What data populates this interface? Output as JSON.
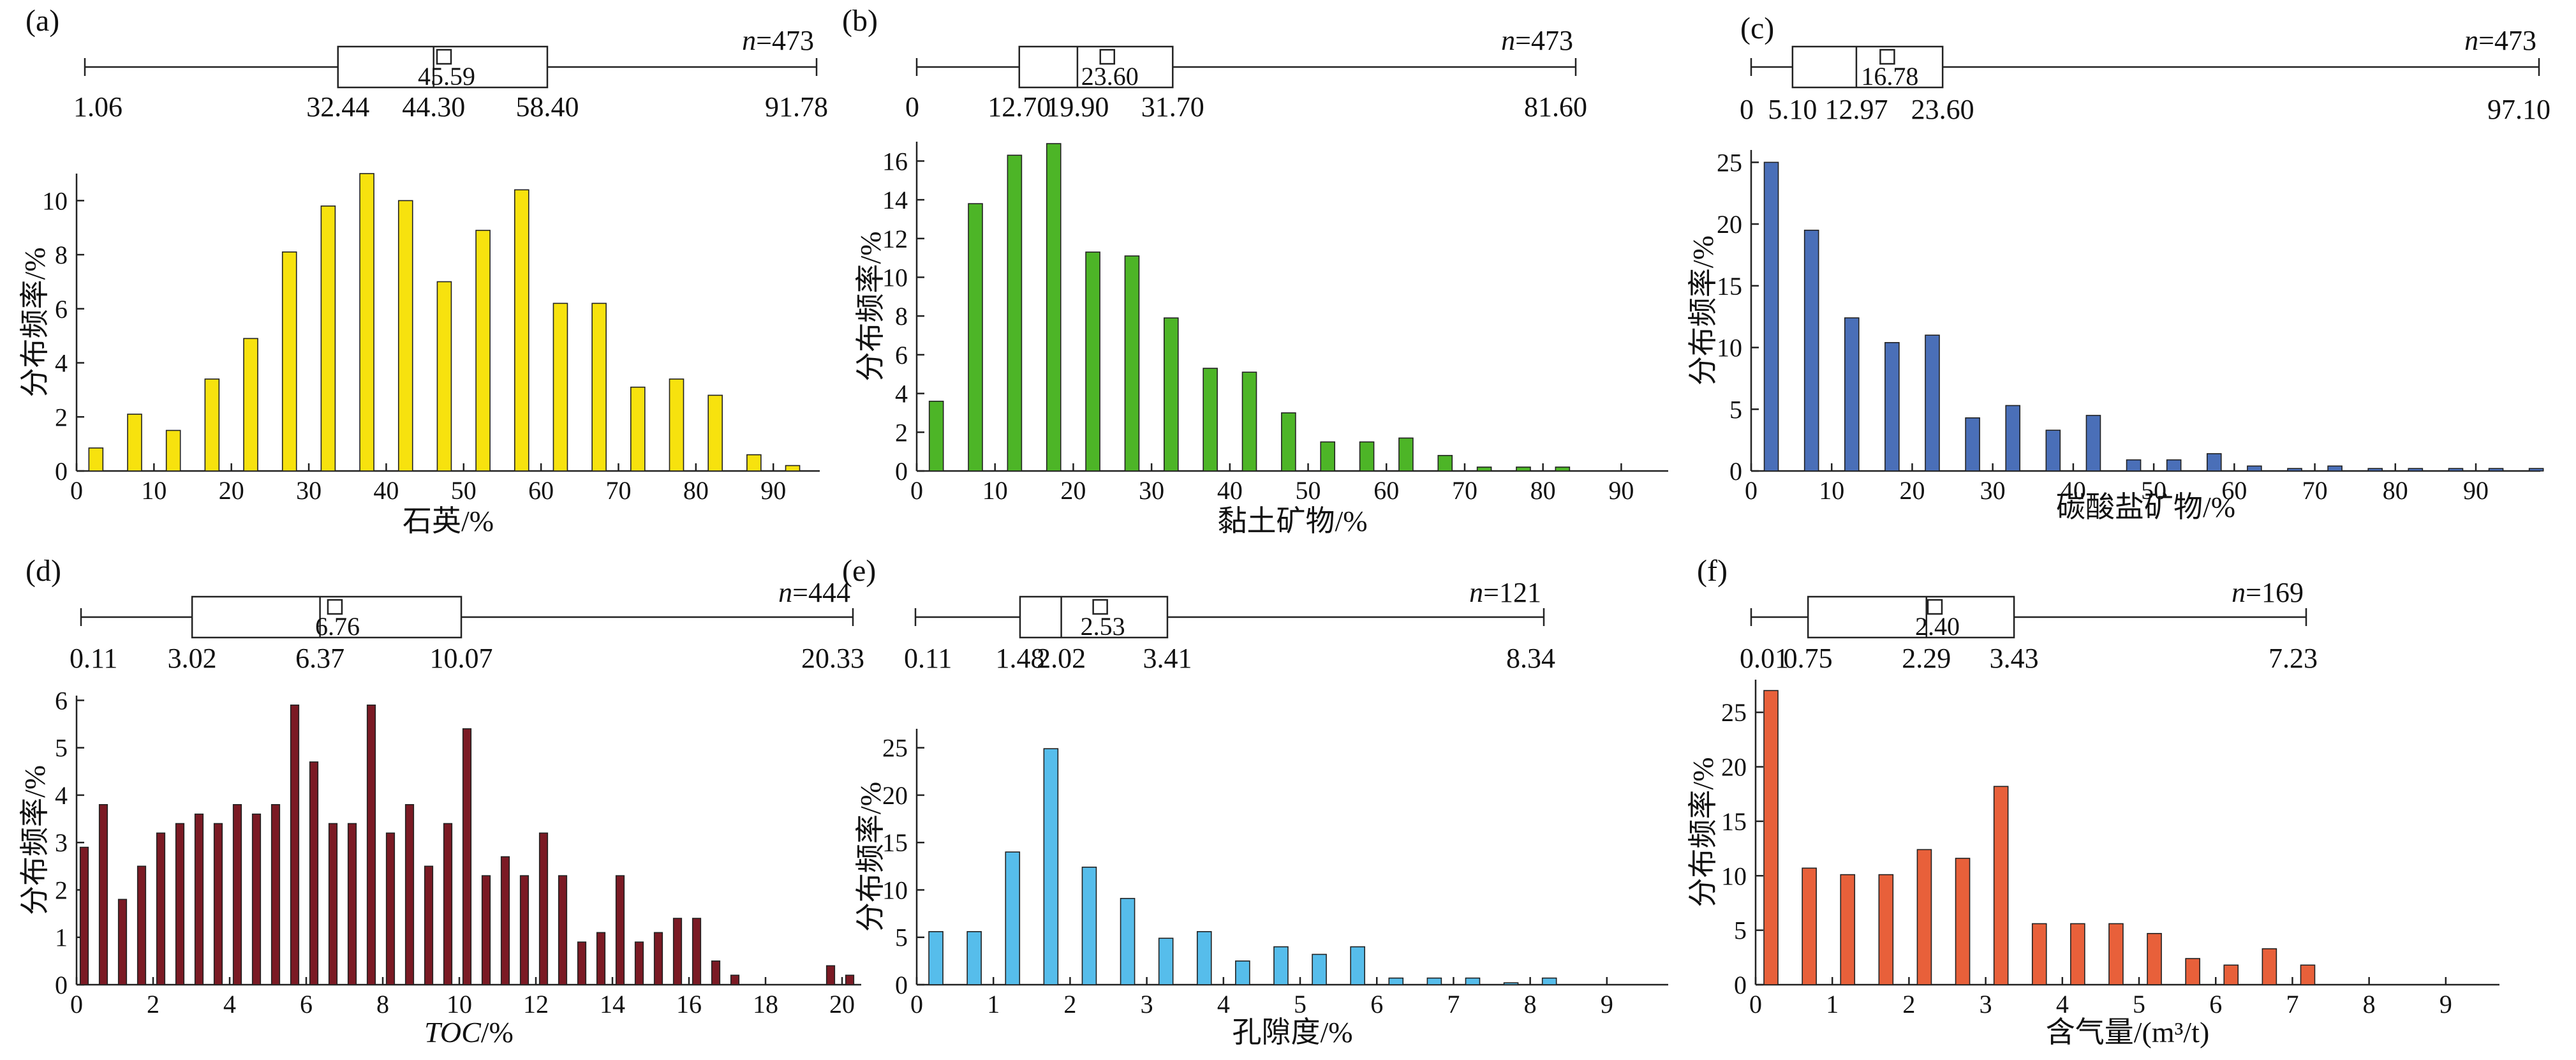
{
  "chart_data": [
    {
      "type": "bar",
      "panel_label": "(a)",
      "xlabel": "石英/%",
      "ylabel": "分布频率/%",
      "color": "#F7E20E",
      "xlim": [
        0,
        96
      ],
      "xticks": [
        "0",
        "10",
        "20",
        "30",
        "40",
        "50",
        "60",
        "70",
        "80",
        "90"
      ],
      "ylim": [
        0,
        11
      ],
      "yticks": [
        "0",
        "2",
        "4",
        "6",
        "8",
        "10"
      ],
      "x": [
        2.5,
        7.5,
        12.5,
        17.5,
        22.5,
        27.5,
        32.5,
        37.5,
        42.5,
        47.5,
        52.5,
        57.5,
        62.5,
        67.5,
        72.5,
        77.5,
        82.5,
        87.5,
        92.5
      ],
      "values": [
        0.85,
        2.1,
        1.5,
        3.4,
        4.9,
        8.1,
        9.8,
        11.0,
        10.0,
        7.0,
        8.9,
        10.4,
        6.2,
        6.2,
        3.1,
        3.4,
        2.8,
        0.6,
        0.2
      ],
      "box": {
        "n_label": "n=473",
        "min": 1.06,
        "q1": 32.44,
        "median": 44.3,
        "q3": 58.4,
        "max": 91.78,
        "mean": 45.59,
        "min_label": "1.06",
        "q1_label": "32.44",
        "median_label": "44.30",
        "q3_label": "58.40",
        "max_label": "91.78",
        "mean_label": "45.59"
      }
    },
    {
      "type": "bar",
      "panel_label": "(b)",
      "xlabel": "黏土矿物/%",
      "ylabel": "分布频率/%",
      "color": "#4DB527",
      "xlim": [
        0,
        96
      ],
      "xticks": [
        "0",
        "10",
        "20",
        "30",
        "40",
        "50",
        "60",
        "70",
        "80",
        "90"
      ],
      "ylim": [
        0,
        17
      ],
      "yticks": [
        "0",
        "2",
        "4",
        "6",
        "8",
        "10",
        "12",
        "14",
        "16"
      ],
      "x": [
        2.5,
        7.5,
        12.5,
        17.5,
        22.5,
        27.5,
        32.5,
        37.5,
        42.5,
        47.5,
        52.5,
        57.5,
        62.5,
        67.5,
        72.5,
        77.5,
        82.5
      ],
      "values": [
        3.6,
        13.8,
        16.3,
        16.9,
        11.3,
        11.1,
        7.9,
        5.3,
        5.1,
        3.0,
        1.5,
        1.5,
        1.7,
        0.8,
        0.2,
        0.2,
        0.2
      ],
      "box": {
        "n_label": "n=473",
        "min": 0,
        "q1": 12.7,
        "median": 19.9,
        "q3": 31.7,
        "max": 81.6,
        "mean": 23.6,
        "min_label": "0",
        "q1_label": "12.70",
        "median_label": "19.90",
        "q3_label": "31.70",
        "max_label": "81.60",
        "mean_label": "23.60"
      }
    },
    {
      "type": "bar",
      "panel_label": "(c)",
      "xlabel": "碳酸盐矿物/%",
      "ylabel": "分布频率/%",
      "color": "#4A6FB8",
      "xlim": [
        0,
        98
      ],
      "xticks": [
        "0",
        "10",
        "20",
        "30",
        "40",
        "50",
        "60",
        "70",
        "80",
        "90"
      ],
      "ylim": [
        0,
        26
      ],
      "yticks": [
        "0",
        "5",
        "10",
        "15",
        "20",
        "25"
      ],
      "x": [
        2.5,
        7.5,
        12.5,
        17.5,
        22.5,
        27.5,
        32.5,
        37.5,
        42.5,
        47.5,
        52.5,
        57.5,
        62.5,
        67.5,
        72.5,
        77.5,
        82.5,
        87.5,
        92.5,
        97.5
      ],
      "values": [
        25.0,
        19.5,
        12.4,
        10.4,
        11.0,
        4.3,
        5.3,
        3.3,
        4.5,
        0.9,
        0.9,
        1.4,
        0.4,
        0.2,
        0.4,
        0.2,
        0.2,
        0.2,
        0.2,
        0.2
      ],
      "box": {
        "n_label": "n=473",
        "min": 0,
        "q1": 5.1,
        "median": 12.97,
        "q3": 23.6,
        "max": 97.1,
        "mean": 16.78,
        "min_label": "0",
        "q1_label": "5.10",
        "median_label": "12.97",
        "q3_label": "23.60",
        "max_label": "97.10",
        "mean_label": "16.78"
      }
    },
    {
      "type": "bar",
      "panel_label": "(d)",
      "xlabel": "TOC/%",
      "ylabel": "分布频率/%",
      "color": "#7B1A24",
      "xlim": [
        0,
        20.5
      ],
      "xticks": [
        "0",
        "2",
        "4",
        "6",
        "8",
        "10",
        "12",
        "14",
        "16",
        "18",
        "20"
      ],
      "ylim": [
        0,
        6.1
      ],
      "yticks": [
        "0",
        "1",
        "2",
        "3",
        "4",
        "5",
        "6"
      ],
      "x": [
        0.2,
        0.7,
        1.2,
        1.7,
        2.2,
        2.7,
        3.2,
        3.7,
        4.2,
        4.7,
        5.2,
        5.7,
        6.2,
        6.7,
        7.2,
        7.7,
        8.2,
        8.7,
        9.2,
        9.7,
        10.2,
        10.7,
        11.2,
        11.7,
        12.2,
        12.7,
        13.2,
        13.7,
        14.2,
        14.7,
        15.2,
        15.7,
        16.2,
        16.7,
        17.2,
        19.7,
        20.2
      ],
      "values": [
        2.9,
        3.8,
        1.8,
        2.5,
        3.2,
        3.4,
        3.6,
        3.4,
        3.8,
        3.6,
        3.8,
        5.9,
        4.7,
        3.4,
        3.4,
        5.9,
        3.2,
        3.8,
        2.5,
        3.4,
        5.4,
        2.3,
        2.7,
        2.3,
        3.2,
        2.3,
        0.9,
        1.1,
        2.3,
        0.9,
        1.1,
        1.4,
        1.4,
        0.5,
        0.2,
        0.4,
        0.2
      ],
      "box": {
        "n_label": "n=444",
        "min": 0.11,
        "q1": 3.02,
        "median": 6.37,
        "q3": 10.07,
        "max": 20.33,
        "mean": 6.76,
        "min_label": "0.11",
        "q1_label": "3.02",
        "median_label": "6.37",
        "q3_label": "10.07",
        "max_label": "20.33",
        "mean_label": "6.76"
      }
    },
    {
      "type": "bar",
      "panel_label": "(e)",
      "xlabel": "孔隙度/%",
      "ylabel": "分布频率/%",
      "color": "#56BDEB",
      "xlim": [
        0,
        9.8
      ],
      "xticks": [
        "0",
        "1",
        "2",
        "3",
        "4",
        "5",
        "6",
        "7",
        "8",
        "9"
      ],
      "ylim": [
        0,
        27
      ],
      "yticks": [
        "0",
        "5",
        "10",
        "15",
        "20",
        "25"
      ],
      "x": [
        0.25,
        0.75,
        1.25,
        1.75,
        2.25,
        2.75,
        3.25,
        3.75,
        4.25,
        4.75,
        5.25,
        5.75,
        6.25,
        6.75,
        7.25,
        7.75,
        8.25
      ],
      "values": [
        5.6,
        5.6,
        14.0,
        24.9,
        12.4,
        9.1,
        4.9,
        5.6,
        2.5,
        4.0,
        3.2,
        4.0,
        0.7,
        0.7,
        0.7,
        0.2,
        0.7
      ],
      "box": {
        "n_label": "n=121",
        "min": 0.11,
        "q1": 1.48,
        "median": 2.02,
        "q3": 3.41,
        "max": 8.34,
        "mean": 2.53,
        "min_label": "0.11",
        "q1_label": "1.48",
        "median_label": "2.02",
        "q3_label": "3.41",
        "max_label": "8.34",
        "mean_label": "2.53"
      }
    },
    {
      "type": "bar",
      "panel_label": "(f)",
      "xlabel": "含气量/(m³/t)",
      "ylabel": "分布频率/%",
      "color": "#E8603A",
      "xlim": [
        0,
        9.7
      ],
      "xticks": [
        "0",
        "1",
        "2",
        "3",
        "4",
        "5",
        "6",
        "7",
        "8",
        "9"
      ],
      "ylim": [
        0,
        28
      ],
      "yticks": [
        "0",
        "5",
        "10",
        "15",
        "20",
        "25"
      ],
      "x": [
        0.2,
        0.7,
        1.2,
        1.7,
        2.2,
        2.7,
        3.2,
        3.7,
        4.2,
        4.7,
        5.2,
        5.7,
        6.2,
        6.7,
        7.2
      ],
      "values": [
        27.0,
        10.7,
        10.1,
        10.1,
        12.4,
        11.6,
        18.2,
        5.6,
        5.6,
        5.6,
        4.7,
        2.4,
        1.8,
        3.3,
        1.8
      ],
      "box": {
        "n_label": "n=169",
        "min": 0.01,
        "q1": 0.75,
        "median": 2.29,
        "q3": 3.43,
        "max": 7.23,
        "mean": 2.4,
        "min_label": "0.01",
        "q1_label": "0.75",
        "median_label": "2.29",
        "q3_label": "3.43",
        "max_label": "7.23",
        "mean_label": "2.40"
      }
    }
  ]
}
